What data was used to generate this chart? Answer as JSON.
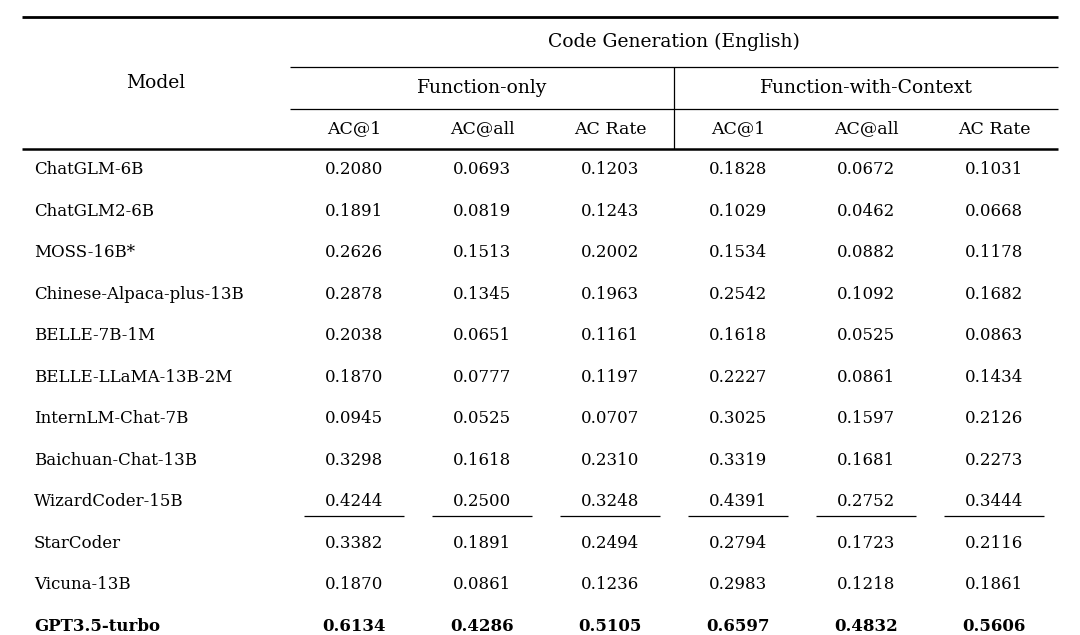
{
  "title": "Code Generation (English)",
  "col_group1": "Function-only",
  "col_group2": "Function-with-Context",
  "sub_cols": [
    "AC@1",
    "AC@all",
    "AC Rate"
  ],
  "models": [
    "ChatGLM-6B",
    "ChatGLM2-6B",
    "MOSS-16B*",
    "Chinese-Alpaca-plus-13B",
    "BELLE-7B-1M",
    "BELLE-LLaMA-13B-2M",
    "InternLM-Chat-7B",
    "Baichuan-Chat-13B",
    "WizardCoder-15B",
    "StarCoder",
    "Vicuna-13B",
    "GPT3.5-turbo"
  ],
  "data": [
    [
      0.208,
      0.0693,
      0.1203,
      0.1828,
      0.0672,
      0.1031
    ],
    [
      0.1891,
      0.0819,
      0.1243,
      0.1029,
      0.0462,
      0.0668
    ],
    [
      0.2626,
      0.1513,
      0.2002,
      0.1534,
      0.0882,
      0.1178
    ],
    [
      0.2878,
      0.1345,
      0.1963,
      0.2542,
      0.1092,
      0.1682
    ],
    [
      0.2038,
      0.0651,
      0.1161,
      0.1618,
      0.0525,
      0.0863
    ],
    [
      0.187,
      0.0777,
      0.1197,
      0.2227,
      0.0861,
      0.1434
    ],
    [
      0.0945,
      0.0525,
      0.0707,
      0.3025,
      0.1597,
      0.2126
    ],
    [
      0.3298,
      0.1618,
      0.231,
      0.3319,
      0.1681,
      0.2273
    ],
    [
      0.4244,
      0.25,
      0.3248,
      0.4391,
      0.2752,
      0.3444
    ],
    [
      0.3382,
      0.1891,
      0.2494,
      0.2794,
      0.1723,
      0.2116
    ],
    [
      0.187,
      0.0861,
      0.1236,
      0.2983,
      0.1218,
      0.1861
    ],
    [
      0.6134,
      0.4286,
      0.5105,
      0.6597,
      0.4832,
      0.5606
    ]
  ],
  "bold_rows": [
    11
  ],
  "underline_rows": [
    8
  ],
  "bg_color": "#ffffff",
  "text_color": "#000000",
  "line_color": "#000000",
  "fig_width": 10.8,
  "fig_height": 6.35,
  "dpi": 100
}
